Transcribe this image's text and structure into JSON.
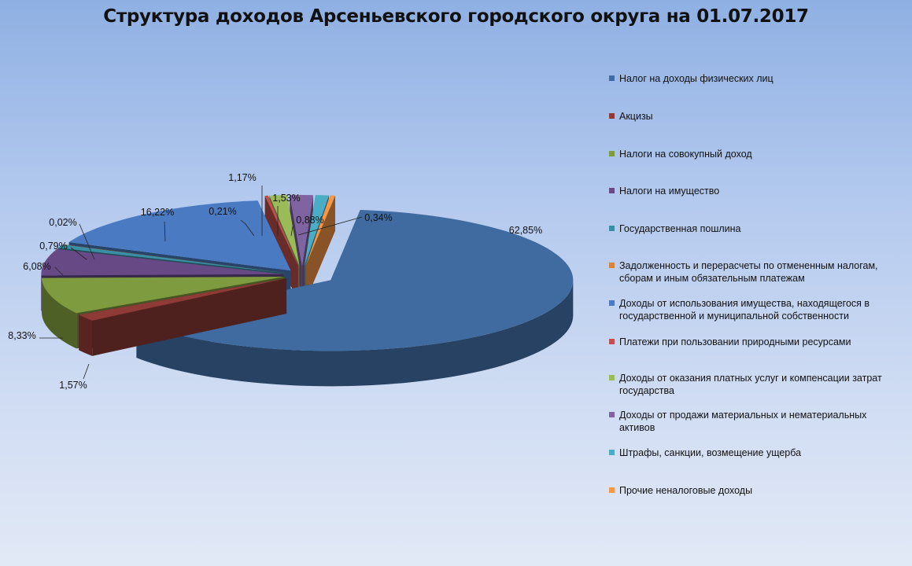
{
  "chart_data": {
    "type": "pie",
    "title": "Структура доходов Арсеньевского городского округа на 01.07.2017",
    "legend_position": "right",
    "labels": [
      "Налог на доходы физических лиц",
      "Акцизы",
      "Налоги на совокупный доход",
      "Налоги на имущество",
      "Государственная пошлина",
      "Задолженность и перерасчеты по отмененным налогам, сборам и иным обязательным платежам",
      "Доходы от использования имущества, находящегося в государственной и муниципальной собственности",
      "Платежи при пользовании природными ресурсами",
      "Доходы от оказания платных услуг и компенсации затрат государства",
      "Доходы от продажи материальных и нематериальных активов",
      "Штрафы, санкции, возмещение ущерба",
      "Прочие неналоговые доходы"
    ],
    "values": [
      62.85,
      1.57,
      8.33,
      6.08,
      0.79,
      0.02,
      16.22,
      0.21,
      1.17,
      1.53,
      0.88,
      0.34
    ],
    "value_labels": [
      "62,85%",
      "1,57%",
      "8,33%",
      "6,08%",
      "0,79%",
      "0,02%",
      "16,22%",
      "0,21%",
      "1,17%",
      "1,53%",
      "0,88%",
      "0,34%"
    ],
    "colors": [
      "#3f6ba0",
      "#8e3a36",
      "#7f9b3f",
      "#664985",
      "#3a8fa5",
      "#d9823a",
      "#4a7bc2",
      "#c0504d",
      "#9bbb59",
      "#8064a2",
      "#4bacc6",
      "#f79646"
    ],
    "exploded": true,
    "three_d": true
  }
}
